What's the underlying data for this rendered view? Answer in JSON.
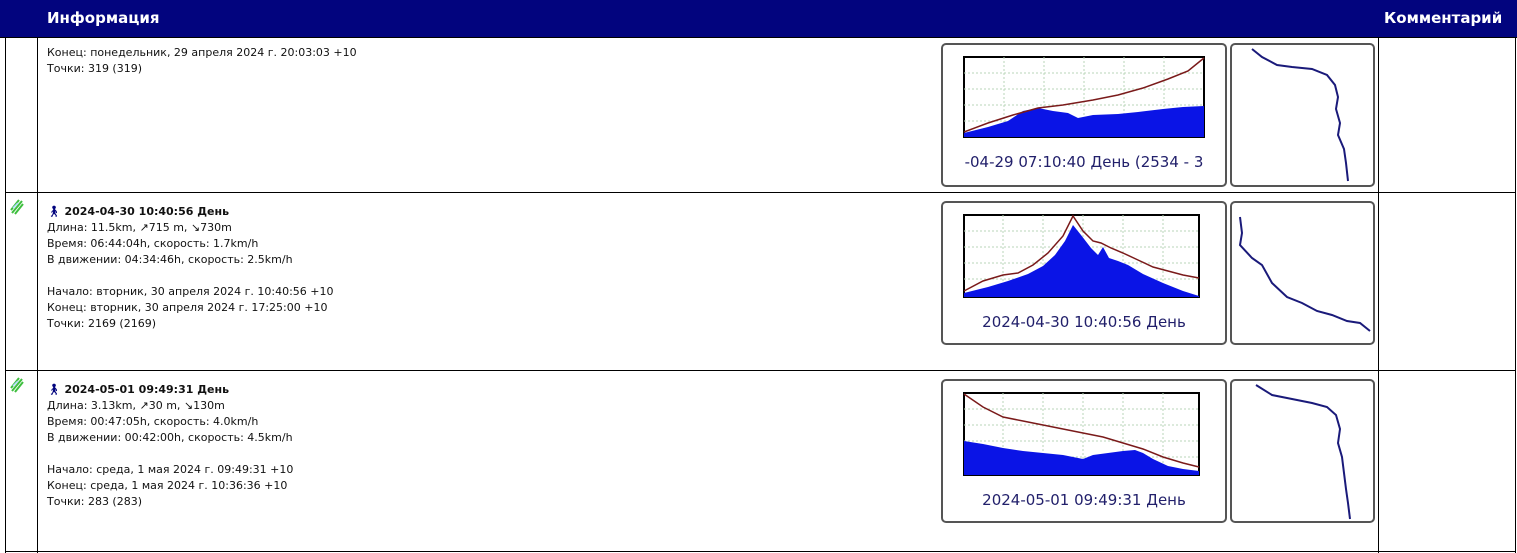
{
  "header": {
    "info_label": "Информация",
    "comment_label": "Комментарий"
  },
  "rows": [
    {
      "end_line": "Конец: понедельник, 29 апреля 2024 г. 20:03:03 +10",
      "points_line": "Точки: 319 (319)",
      "chart_caption": "-04-29 07:10:40 День (2534 - 3"
    },
    {
      "title": "2024-04-30 10:40:56 День",
      "length_line": "Длина: 11.5km, ↗715 m, ↘730m",
      "time_line": "Время: 06:44:04h, скорость: 1.7km/h",
      "moving_line": "В движении: 04:34:46h, скорость: 2.5km/h",
      "start_line": "Начало: вторник, 30 апреля 2024 г. 10:40:56 +10",
      "end_line": "Конец: вторник, 30 апреля 2024 г. 17:25:00 +10",
      "points_line": "Точки: 2169 (2169)",
      "chart_caption": "2024-04-30 10:40:56 День"
    },
    {
      "title": "2024-05-01 09:49:31 День",
      "length_line": "Длина: 3.13km, ↗30 m, ↘130m",
      "time_line": "Время: 00:47:05h, скорость: 4.0km/h",
      "moving_line": "В движении: 00:42:00h, скорость: 4.5km/h",
      "start_line": "Начало: среда, 1 мая 2024 г. 09:49:31 +10",
      "end_line": "Конец: среда, 1 мая 2024 г. 10:36:36 +10",
      "points_line": "Точки: 283 (283)",
      "chart_caption": "2024-05-01 09:49:31 День"
    }
  ],
  "icons": {
    "hike": "walking-person-icon",
    "satellite": "satellite-icon"
  },
  "colors": {
    "header_bg": "#02047e",
    "elevation_fill": "#0a14e6",
    "line": "#7a1a1a",
    "track": "#1a1a7a"
  }
}
